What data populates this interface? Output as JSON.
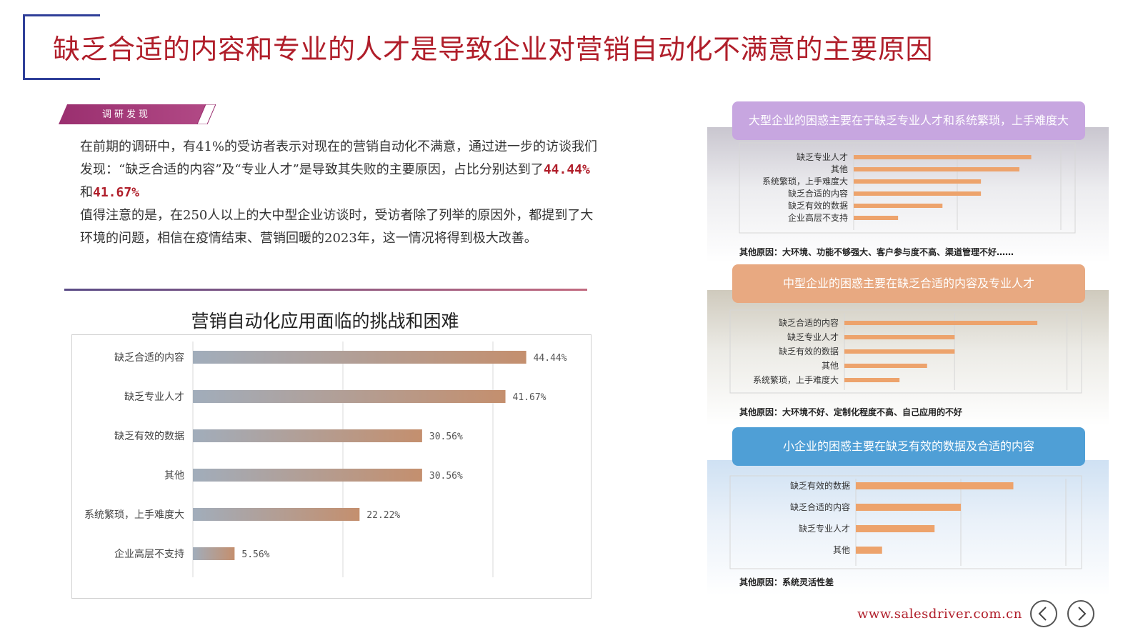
{
  "title": "缺乏合适的内容和专业的人才是导致企业对营销自动化不满意的主要原因",
  "ribbon_label": "调研发现",
  "paragraph1_a": "在前期的调研中，有41%的受访者表示对现在的营销自动化不满意，通过进一步的访谈我们发现：“缺乏合适的内容”及“专业人才”是导致其失败的主要原因，占比分别达到了",
  "paragraph1_v1": "44.44%",
  "paragraph1_and": "和",
  "paragraph1_v2": "41.67%",
  "paragraph2": "值得注意的是，在250人以上的大中型企业访谈时，受访者除了列举的原因外，都提到了大环境的问题，相信在疫情结束、营销回暖的2023年，这一情况将得到极大改善。",
  "footer_url": "www.salesdriver.com.cn",
  "colors": {
    "accent_red": "#b01e2a",
    "frame_blue": "#2f3f99",
    "bar_orange": "#eda36c",
    "pill_large": "#c7a6e0",
    "pill_mid": "#e8a981",
    "pill_small": "#4f9fd6"
  },
  "chart_data": [
    {
      "type": "bar",
      "orientation": "horizontal",
      "title": "营销自动化应用面临的挑战和困难",
      "categories": [
        "缺乏合适的内容",
        "缺乏专业人才",
        "缺乏有效的数据",
        "其他",
        "系统繁琐，上手难度大",
        "企业高层不支持"
      ],
      "values": [
        44.44,
        41.67,
        30.56,
        30.56,
        22.22,
        5.56
      ],
      "value_labels": [
        "44.44%",
        "41.67%",
        "30.56%",
        "30.56%",
        "22.22%",
        "5.56%"
      ],
      "xlim": [
        0,
        50
      ],
      "grid": true
    },
    {
      "type": "bar",
      "orientation": "horizontal",
      "title": "大型企业的困惑主要在于缺乏专业人才和系统繁琐，上手难度大",
      "categories": [
        "缺乏专业人才",
        "其他",
        "系统繁琐，上手难度大",
        "缺乏合适的内容",
        "缺乏有效的数据",
        "企业高层不支持"
      ],
      "values": [
        6,
        5.6,
        4.3,
        4.3,
        3,
        1.5
      ],
      "xlim": [
        0,
        7
      ],
      "grid": true,
      "note": "其他原因：大环境、功能不够强大、客户参与度不高、渠道管理不好……"
    },
    {
      "type": "bar",
      "orientation": "horizontal",
      "title": "中型企业的困惑主要在缺乏合适的内容及专业人才",
      "categories": [
        "缺乏合适的内容",
        "缺乏专业人才",
        "缺乏有效的数据",
        "其他",
        "系统繁琐，上手难度大"
      ],
      "values": [
        7,
        4,
        4,
        3,
        2
      ],
      "xlim": [
        0,
        8.5
      ],
      "grid": true,
      "note": "其他原因：大环境不好、定制化程度不高、自己应用的不好"
    },
    {
      "type": "bar",
      "orientation": "horizontal",
      "title": "小企业的困惑主要在缺乏有效的数据及合适的内容",
      "categories": [
        "缺乏有效的数据",
        "缺乏合适的内容",
        "缺乏专业人才",
        "其他"
      ],
      "values": [
        6,
        4,
        3,
        1
      ],
      "xlim": [
        0,
        8
      ],
      "grid": true,
      "note": "其他原因：系统灵活性差"
    }
  ]
}
